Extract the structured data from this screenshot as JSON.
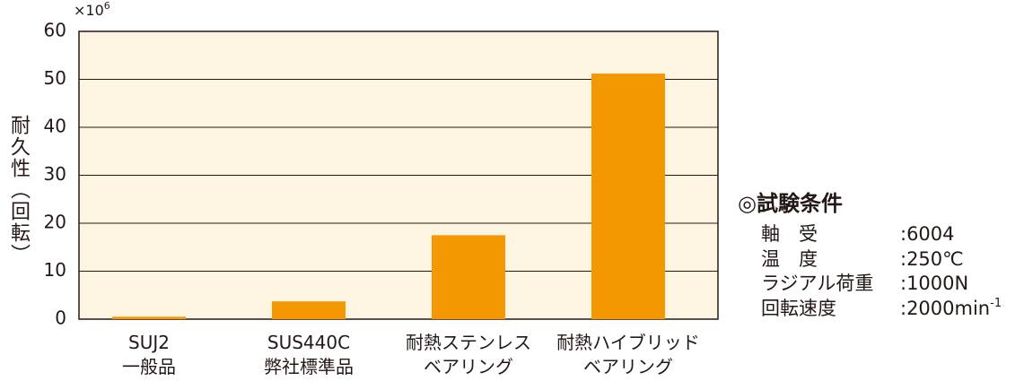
{
  "chart_data": {
    "type": "bar",
    "y_label": "耐久性（回転）",
    "y_unit": {
      "base": "×10",
      "exponent": "6"
    },
    "categories": [
      "SUJ2\n一般品",
      "SUS440C\n弊社標準品",
      "耐熱ステンレス\nベアリング",
      "耐熱ハイブリッド\nベアリング"
    ],
    "values": [
      0.5,
      3.7,
      17.5,
      51.2
    ],
    "color": "#f39800",
    "ylim": [
      0,
      60
    ],
    "yticks": [
      0,
      10,
      20,
      30,
      40,
      50,
      60
    ],
    "grid": true
  },
  "conditions": {
    "title": "◎試験条件",
    "rows": [
      {
        "label": "軸　受",
        "value": ":6004"
      },
      {
        "label": "温　度",
        "value": ":250℃"
      },
      {
        "label": "ラジアル荷重",
        "value": ":1000N"
      },
      {
        "label": "回転速度",
        "value": ":2000min",
        "sup": "-1"
      }
    ]
  }
}
